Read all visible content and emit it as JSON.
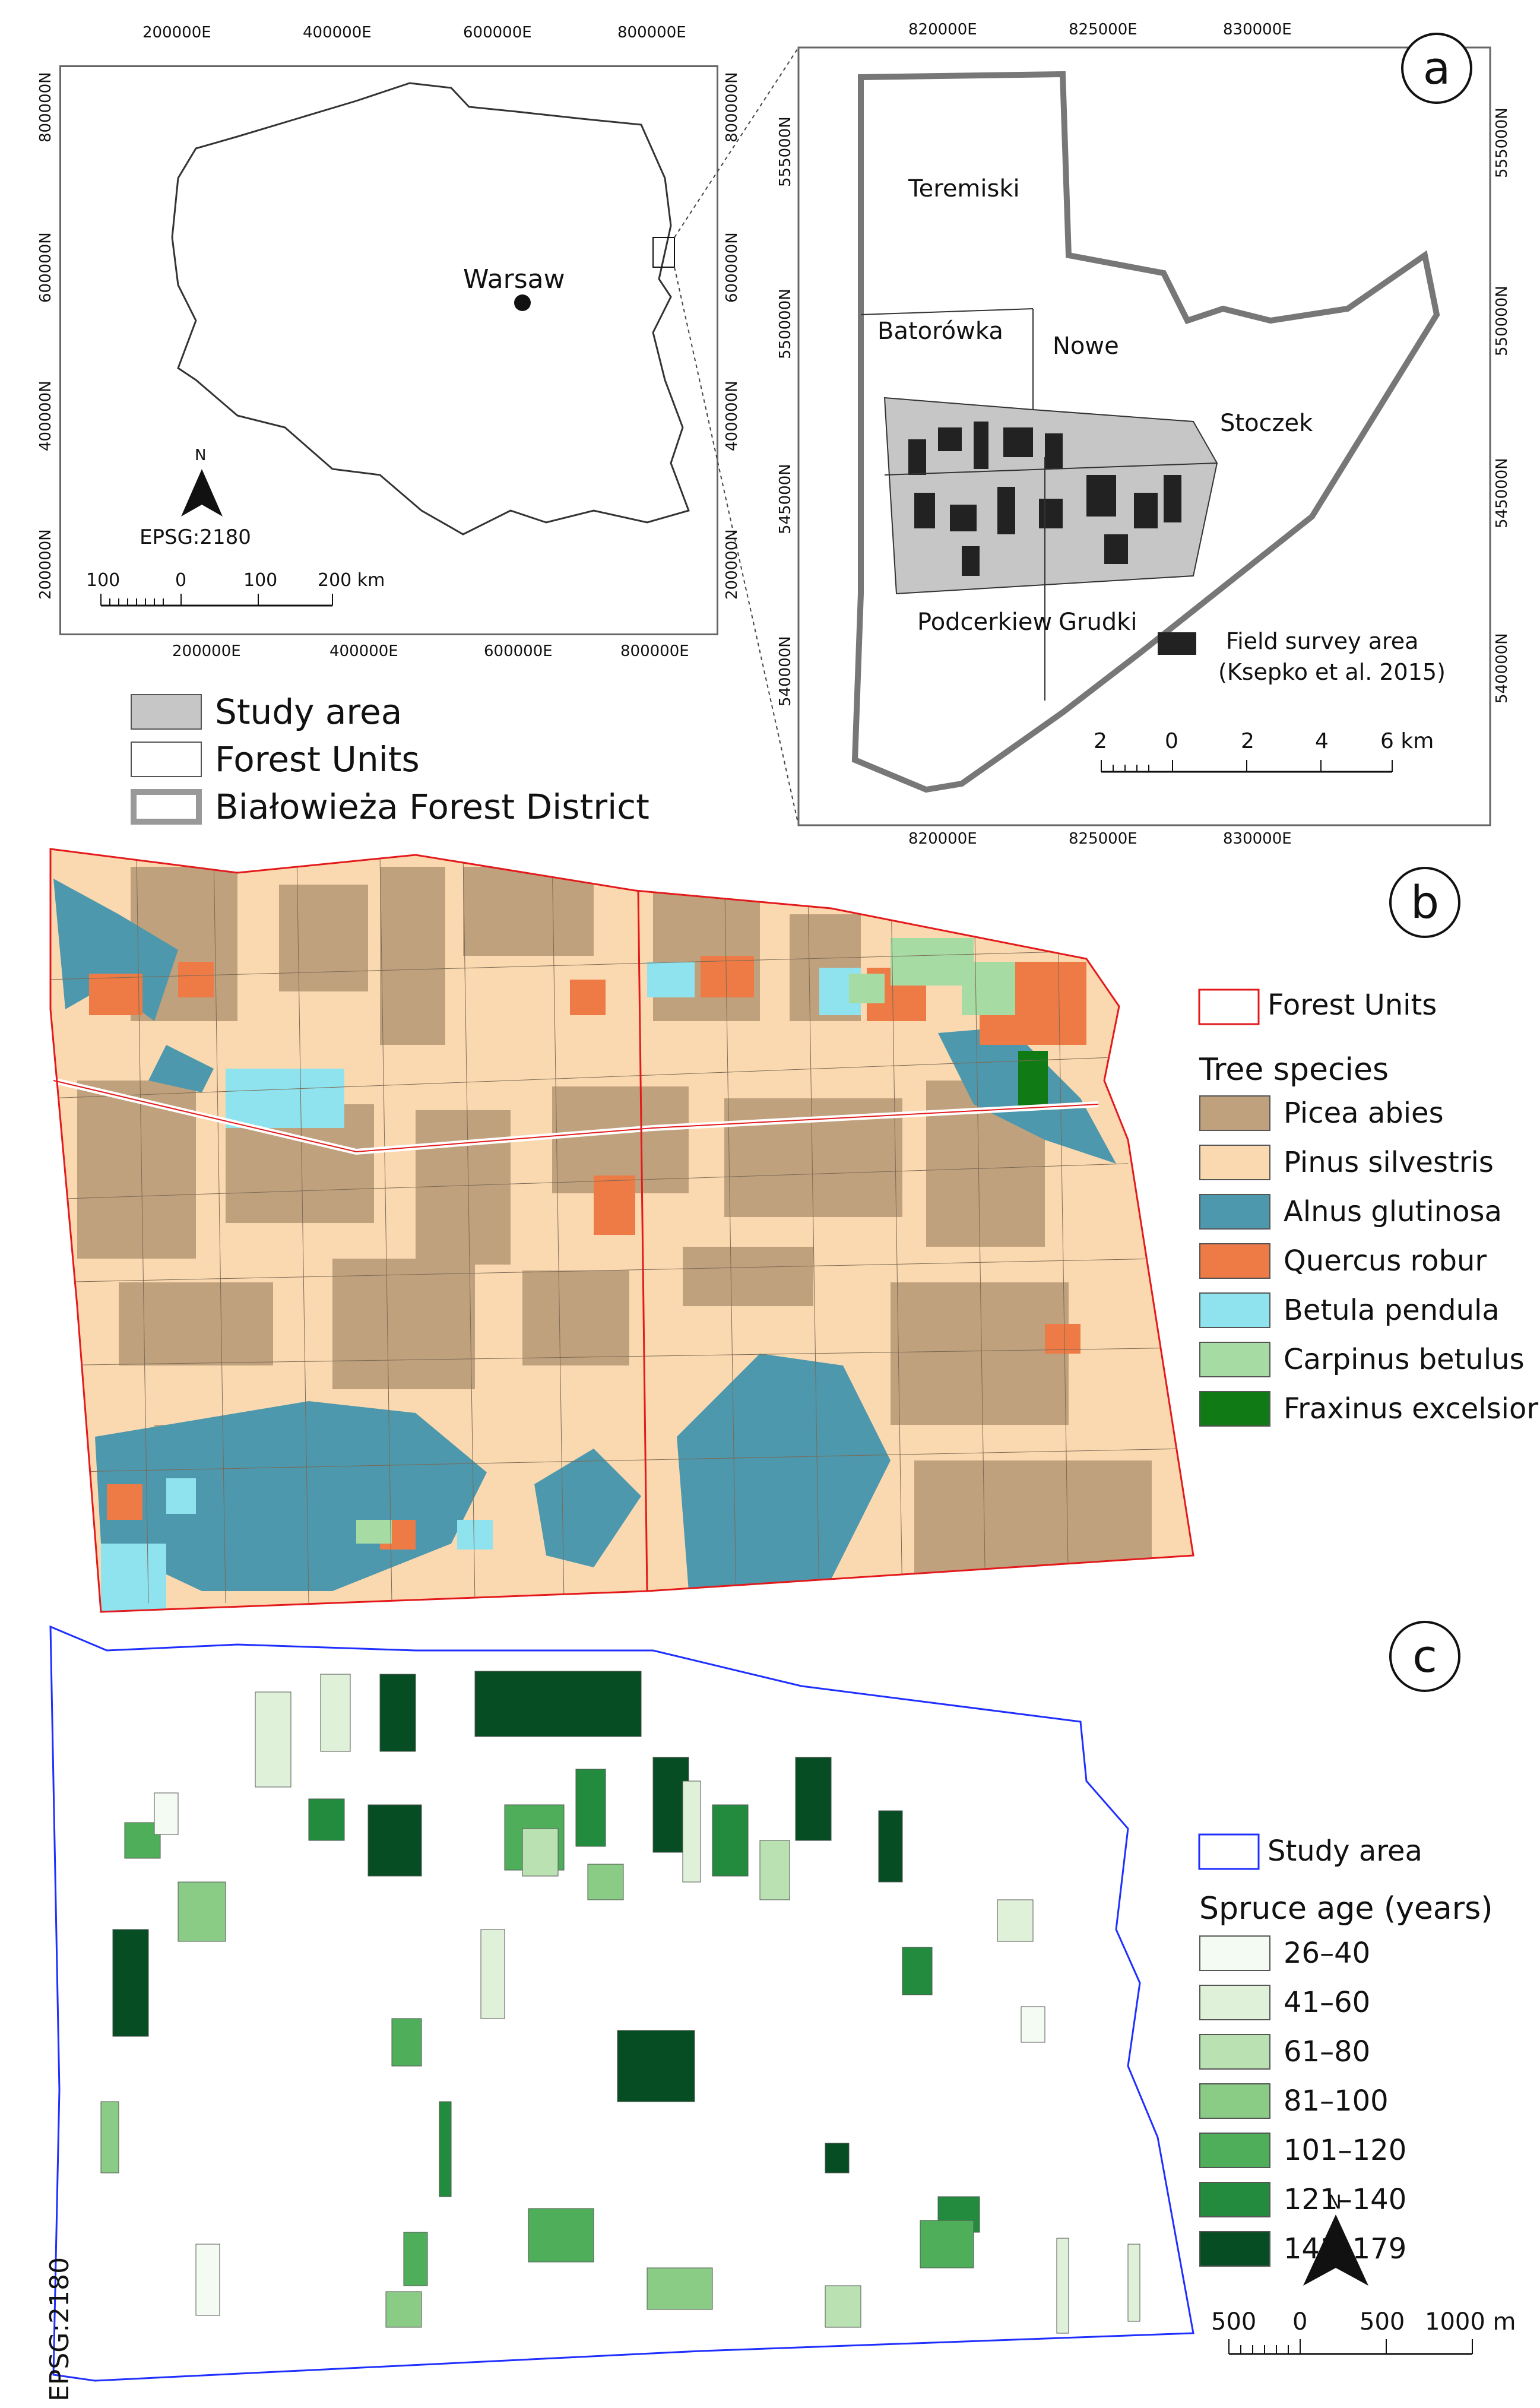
{
  "panel_a": {
    "letter": "a",
    "poland_map": {
      "top_ticks": [
        "200000E",
        "400000E",
        "600000E",
        "800000E"
      ],
      "bottom_ticks": [
        "200000E",
        "400000E",
        "600000E",
        "800000E"
      ],
      "left_ticks": [
        "800000N",
        "600000N",
        "400000N",
        "200000N"
      ],
      "right_ticks": [
        "800000N",
        "600000N",
        "400000N",
        "200000N"
      ],
      "city": "Warsaw",
      "north": "N",
      "crs": "EPSG:2180",
      "scale_labels": [
        "100",
        "0",
        "100",
        "200 km"
      ]
    },
    "district_map": {
      "top_ticks": [
        "820000E",
        "825000E",
        "830000E"
      ],
      "bottom_ticks": [
        "820000E",
        "825000E",
        "830000E"
      ],
      "left_ticks": [
        "555000N",
        "550000N",
        "545000N",
        "540000N"
      ],
      "right_ticks": [
        "555000N",
        "550000N",
        "545000N",
        "540000N"
      ],
      "units": [
        "Teremiski",
        "Batorówka",
        "Nowe",
        "Stoczek",
        "Podcerkiew",
        "Grudki"
      ],
      "field_legend": "Field survey area",
      "field_legend_ref": "(Ksepko et al. 2015)",
      "scale_labels": [
        "2",
        "0",
        "2",
        "4",
        "6 km"
      ]
    },
    "legend": [
      {
        "label": "Study area",
        "color": "#c6c6c6"
      },
      {
        "label": "Forest Units",
        "color": "#ffffff"
      },
      {
        "label": "Białowieża Forest District",
        "color": "#999999"
      }
    ]
  },
  "panel_b": {
    "letter": "b",
    "forest_units_label": "Forest Units",
    "legend_title": "Tree species",
    "species": [
      {
        "label": "Picea abies",
        "color": "#c0a17d"
      },
      {
        "label": "Pinus silvestris",
        "color": "#fbd9b0"
      },
      {
        "label": "Alnus glutinosa",
        "color": "#4d98ac"
      },
      {
        "label": "Quercus robur",
        "color": "#ee7a45"
      },
      {
        "label": "Betula pendula",
        "color": "#8fe3ee"
      },
      {
        "label": "Carpinus betulus",
        "color": "#a6dca4"
      },
      {
        "label": "Fraxinus excelsior",
        "color": "#107a15"
      }
    ]
  },
  "panel_c": {
    "letter": "c",
    "study_area_label": "Study area",
    "legend_title": "Spruce age (years)",
    "age_classes": [
      {
        "label": "26–40",
        "color": "#f4fbf2"
      },
      {
        "label": "41–60",
        "color": "#dff1d9"
      },
      {
        "label": "61–80",
        "color": "#b9e1b2"
      },
      {
        "label": "81–100",
        "color": "#8acc86"
      },
      {
        "label": "101–120",
        "color": "#4fae5a"
      },
      {
        "label": "121–140",
        "color": "#228b3e"
      },
      {
        "label": "141–179",
        "color": "#064d24"
      }
    ],
    "north": "N",
    "scale_labels": [
      "500",
      "0",
      "500",
      "1000 m"
    ],
    "crs": "EPSG:2180"
  }
}
